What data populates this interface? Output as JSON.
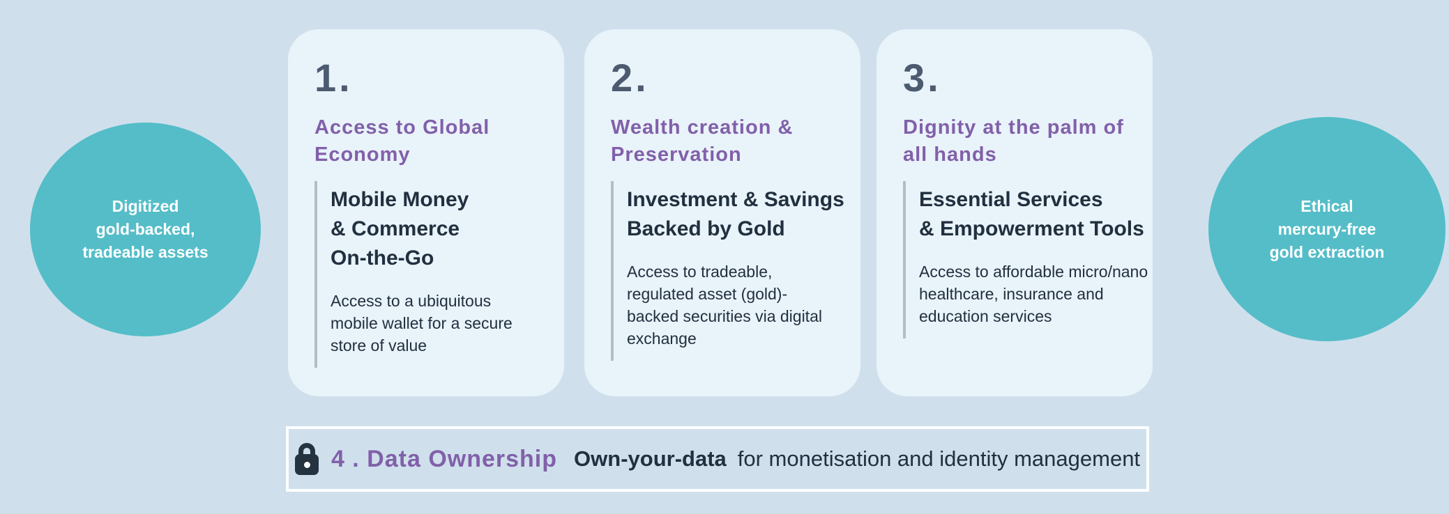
{
  "colors": {
    "page_bg": "#cfe0ec",
    "card_bg": "#e9f3fa",
    "accent_teal": "#54bdc8",
    "accent_purple": "#8160a9",
    "number_slate": "#4c5b70",
    "text_dark": "#21303f",
    "divider_gray": "#b5bdc3",
    "bar_border_white": "#fdfeff",
    "circle_text_white": "#ffffff"
  },
  "side_circles": {
    "left": {
      "lines": [
        "Digitized",
        "gold-backed,",
        "tradeable assets"
      ]
    },
    "right": {
      "lines": [
        "Ethical",
        "mercury-free",
        "gold extraction"
      ]
    }
  },
  "cards": [
    {
      "number": "1.",
      "title_lines": [
        "Access to Global",
        "Economy"
      ],
      "subtitle_lines": [
        "Mobile Money",
        "& Commerce",
        "On-the-Go"
      ],
      "body_lines": [
        "Access to a ubiquitous",
        "mobile wallet for a secure",
        "store of value"
      ]
    },
    {
      "number": "2.",
      "title_lines": [
        "Wealth creation &",
        "Preservation"
      ],
      "subtitle_lines": [
        "Investment & Savings",
        "Backed by Gold"
      ],
      "body_lines": [
        "Access to tradeable,",
        "regulated asset (gold)-",
        "backed securities via digital",
        "exchange"
      ]
    },
    {
      "number": "3.",
      "title_lines": [
        "Dignity at the palm of",
        "all hands"
      ],
      "subtitle_lines": [
        "Essential Services",
        "& Empowerment Tools"
      ],
      "body_lines": [
        "Access to affordable micro/nano",
        "healthcare, insurance and",
        "education services"
      ]
    }
  ],
  "footer_bar": {
    "lock_icon": "lock-icon",
    "item_number_label": "4 . Data Ownership",
    "highlight_text": "Own-your-data",
    "description_text": "for monetisation and identity management"
  }
}
